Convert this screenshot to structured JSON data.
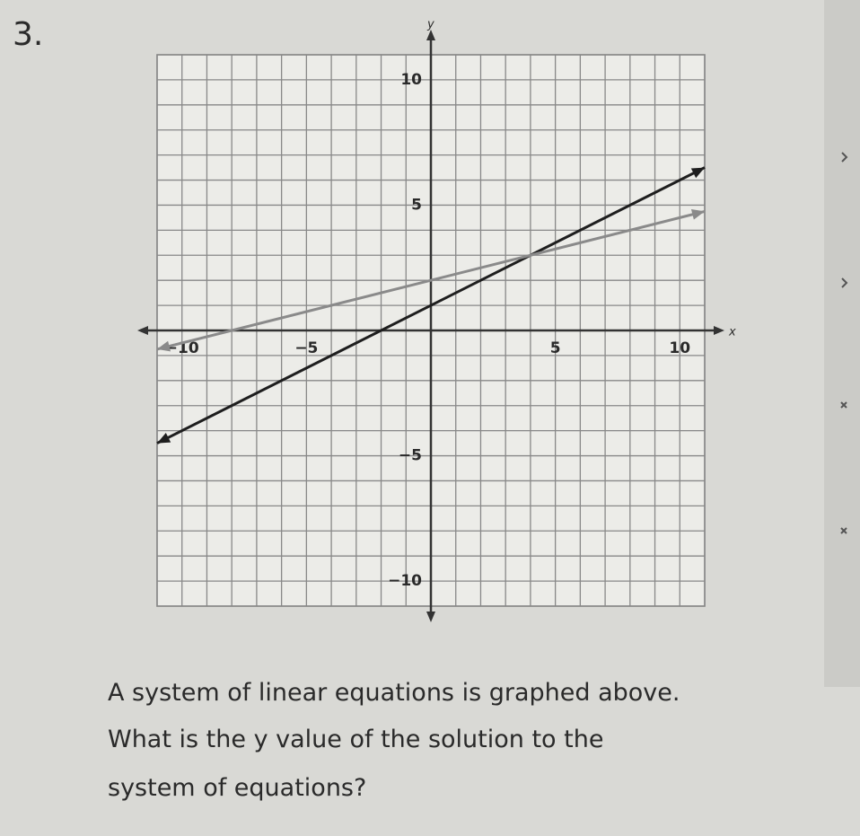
{
  "question_number": "3.",
  "chart_data": {
    "type": "line",
    "x_label": "x",
    "y_label": "y",
    "x": [
      -11,
      11
    ],
    "series": [
      {
        "color": "#1e1e1e",
        "values": [
          -4.5,
          6.5
        ]
      },
      {
        "color": "#8a8a8a",
        "values": [
          -0.75,
          4.75
        ]
      }
    ],
    "xlim": [
      -11,
      11
    ],
    "ylim": [
      -11,
      11
    ],
    "xticks": [
      {
        "value": -10,
        "label": "−10"
      },
      {
        "value": -5,
        "label": "−5"
      },
      5,
      10
    ],
    "yticks": [
      {
        "value": -10,
        "label": "−10"
      },
      {
        "value": -5,
        "label": "−5"
      },
      5,
      10
    ],
    "grid": true,
    "grid_step": 1
  },
  "question": [
    "A system of linear equations is graphed above.",
    "What is the y value of the solution to the",
    "system of equations?"
  ]
}
